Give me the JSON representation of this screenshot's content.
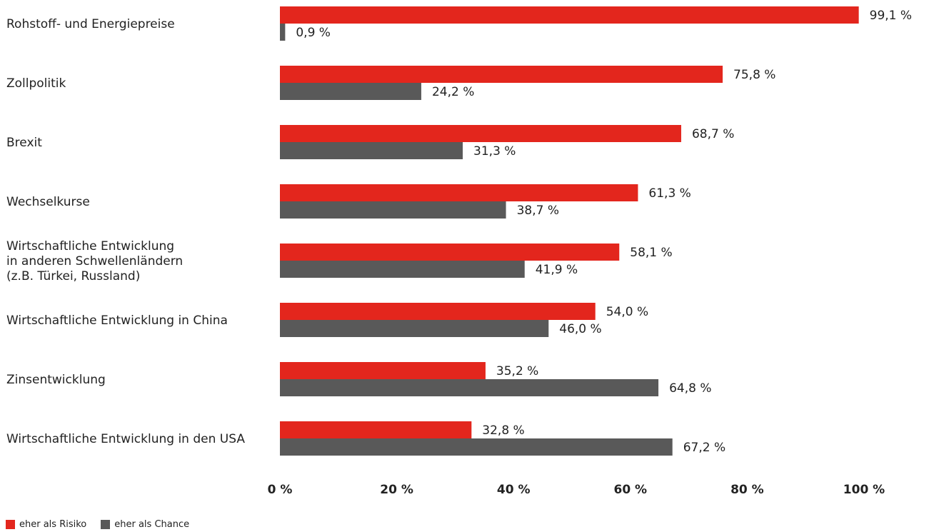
{
  "colors": {
    "risk": "#e3261d",
    "chance": "#595959"
  },
  "legend": {
    "risk_label": "eher als Risiko",
    "chance_label": "eher als Chance"
  },
  "chart_data": {
    "type": "bar",
    "orientation": "horizontal",
    "categories": [
      [
        "Rohstoff- und Energiepreise"
      ],
      [
        "Zollpolitik"
      ],
      [
        "Brexit"
      ],
      [
        "Wechselkurse"
      ],
      [
        "Wirtschaftliche Entwicklung",
        "in anderen Schwellenländern",
        "(z.B. Türkei, Russland)"
      ],
      [
        "Wirtschaftliche Entwicklung in China"
      ],
      [
        "Zinsentwicklung"
      ],
      [
        "Wirtschaftliche Entwicklung in den USA"
      ]
    ],
    "series": [
      {
        "name": "eher als Risiko",
        "values": [
          99.1,
          75.8,
          68.7,
          61.3,
          58.1,
          54.0,
          35.2,
          32.8
        ],
        "labels": [
          "99,1 %",
          "75,8 %",
          "68,7 %",
          "61,3 %",
          "58,1 %",
          "54,0 %",
          "35,2 %",
          "32,8 %"
        ]
      },
      {
        "name": "eher als Chance",
        "values": [
          0.9,
          24.2,
          31.3,
          38.7,
          41.9,
          46.0,
          64.8,
          67.2
        ],
        "labels": [
          "0,9 %",
          "24,2 %",
          "31,3 %",
          "38,7 %",
          "41,9 %",
          "46,0 %",
          "64,8 %",
          "67,2 %"
        ]
      }
    ],
    "xticks": [
      "0 %",
      "20 %",
      "40 %",
      "60 %",
      "80 %",
      "100 %"
    ],
    "xlim": [
      0,
      100
    ],
    "grid": false,
    "legend_position": "bottom-left"
  }
}
